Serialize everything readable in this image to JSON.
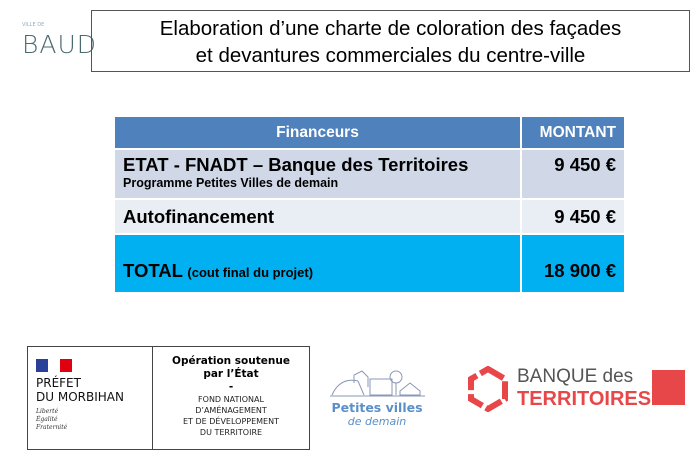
{
  "header": {
    "logo_text": "BAUD",
    "logo_small": "VILLE DE",
    "title_line1": "Elaboration d’une charte de coloration des façades",
    "title_line2": "et devantures commerciales du centre-ville"
  },
  "table": {
    "headers": [
      "Financeurs",
      "MONTANT"
    ],
    "rows": [
      {
        "label": "ETAT - FNADT – Banque des Territoires",
        "sub": "Programme Petites Villes  de demain",
        "amount": "9 450 €"
      },
      {
        "label": "Autofinancement",
        "amount": "9 450 €"
      }
    ],
    "total": {
      "label": "TOTAL",
      "note": "(cout final du projet)",
      "amount": "18 900 €"
    }
  },
  "logos": {
    "prefet": {
      "line1": "PRÉFET",
      "line2": "DU MORBIHAN",
      "motto": [
        "Liberté",
        "Égalité",
        "Fraternité"
      ]
    },
    "operation": {
      "title1": "Opération soutenue",
      "title2": "par l’État",
      "dash": "-",
      "lines": [
        "FOND NATIONAL",
        "D’AMÉNAGEMENT",
        "ET DE DÉVELOPPEMENT",
        "DU TERRITOIRE"
      ]
    },
    "pvd": {
      "line1": "Petites villes",
      "line2": "de demain"
    },
    "bdt": {
      "line1": "BANQUE des",
      "line2": "TERRITOIRES"
    }
  },
  "colors": {
    "header_blue": "#4f81bd",
    "row1": "#d0d8e8",
    "row2": "#e9edf4",
    "total": "#00b0f0",
    "bdt_red": "#e8474a"
  }
}
